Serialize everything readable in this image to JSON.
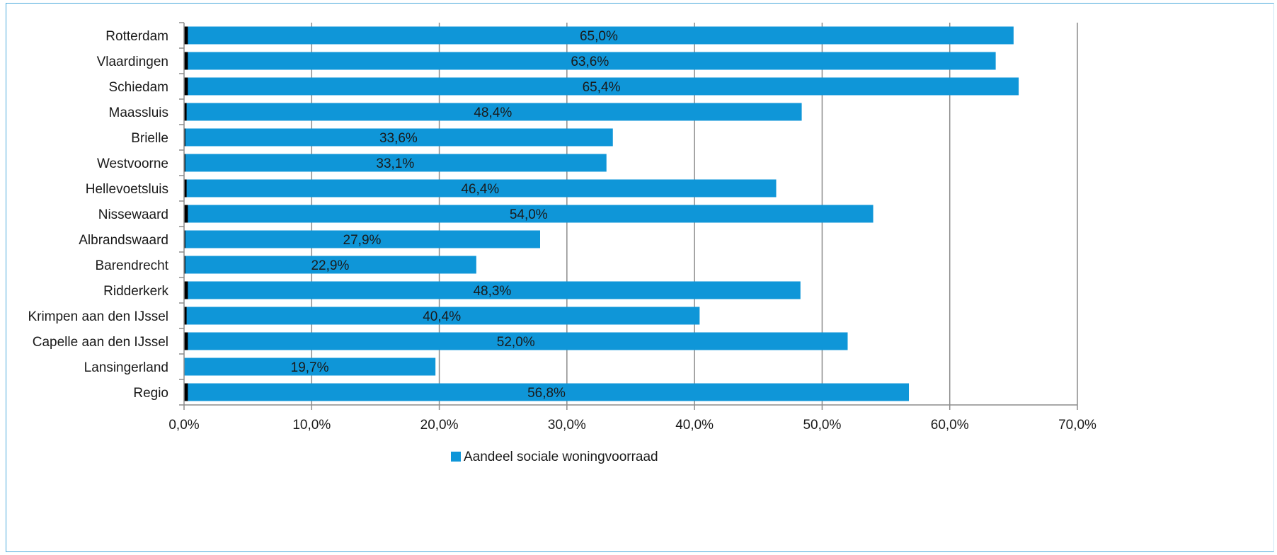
{
  "chart_data": {
    "type": "bar",
    "orientation": "horizontal",
    "categories": [
      "Rotterdam",
      "Vlaardingen",
      "Schiedam",
      "Maassluis",
      "Brielle",
      "Westvoorne",
      "Hellevoetsluis",
      "Nissewaard",
      "Albrandswaard",
      "Barendrecht",
      "Ridderkerk",
      "Krimpen aan den IJssel",
      "Capelle aan den IJssel",
      "Lansingerland",
      "Regio"
    ],
    "series": [
      {
        "name": "Aandeel sociale woningvoorraad",
        "color": "#0f96d8",
        "values": [
          65.0,
          63.6,
          65.4,
          48.4,
          33.6,
          33.1,
          46.4,
          54.0,
          27.9,
          22.9,
          48.3,
          40.4,
          52.0,
          19.7,
          56.8
        ],
        "data_labels": [
          "65,0%",
          "63,6%",
          "65,4%",
          "48,4%",
          "33,6%",
          "33,1%",
          "46,4%",
          "54,0%",
          "27,9%",
          "22,9%",
          "48,3%",
          "40,4%",
          "52,0%",
          "19,7%",
          "56,8%"
        ]
      },
      {
        "name": "",
        "color": "#000000",
        "values": [
          0.3,
          0.3,
          0.3,
          0.2,
          0.1,
          0.1,
          0.2,
          0.3,
          0.1,
          0.1,
          0.3,
          0.2,
          0.3,
          0.0,
          0.3
        ],
        "data_labels": []
      }
    ],
    "xlim": [
      0,
      70
    ],
    "x_ticks": [
      0,
      10,
      20,
      30,
      40,
      50,
      60,
      70
    ],
    "x_tick_labels": [
      "0,0%",
      "10,0%",
      "20,0%",
      "30,0%",
      "40,0%",
      "50,0%",
      "60,0%",
      "70,0%"
    ],
    "title": "",
    "xlabel": "",
    "ylabel": "",
    "grid": true,
    "gridline_color": "#8c8c8c",
    "legend_position": "bottom",
    "legend": [
      "Aandeel sociale woningvoorraad"
    ]
  }
}
